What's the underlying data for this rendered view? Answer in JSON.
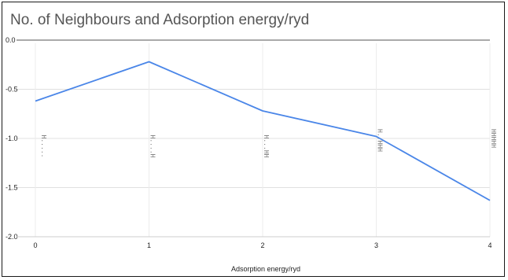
{
  "chart_data": {
    "type": "line",
    "title": "No. of Neighbours and Adsorption energy/ryd",
    "xlabel": "Adsorption energy/ryd",
    "ylabel": "",
    "x": [
      0,
      1,
      2,
      3,
      4
    ],
    "xlim": [
      0,
      4
    ],
    "ylim": [
      -2.0,
      0.0
    ],
    "x_ticks": [
      "0",
      "1",
      "2",
      "3",
      "4"
    ],
    "y_ticks": [
      "0.0",
      "-0.5",
      "-1.0",
      "-1.5",
      "-2.0"
    ],
    "grid": true,
    "series": [
      {
        "values": [
          -0.62,
          -0.22,
          -0.72,
          -0.98,
          -1.63
        ],
        "color": "#4a86e8"
      }
    ],
    "annotations": [
      {
        "x": 0,
        "y": -1.08,
        "text": "H....."
      },
      {
        "x": 1,
        "y": -1.08,
        "text": "H....H"
      },
      {
        "x": 2,
        "y": -1.08,
        "text": "H...HH"
      },
      {
        "x": 3,
        "y": -1.02,
        "text": "H..HHH"
      },
      {
        "x": 4,
        "y": -1.0,
        "text": "HHHHH"
      }
    ]
  }
}
